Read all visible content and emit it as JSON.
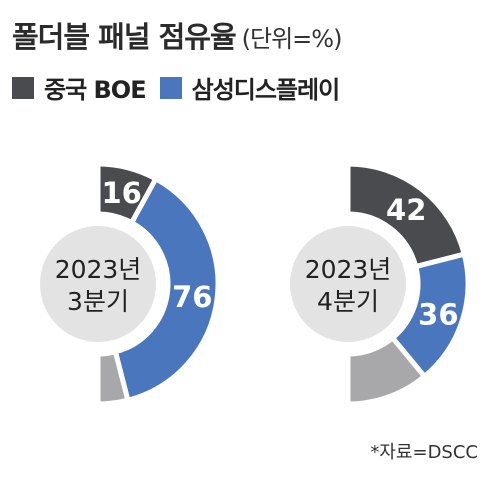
{
  "title": "폴더블 패널 점유율",
  "unit_note": "(단위=%)",
  "source": "*자료=DSCC",
  "colors": {
    "boe": "#4a4b4f",
    "samsung": "#4a76bd",
    "others": "#a8a8aa",
    "center": "#e3e3e3",
    "label_text": "#ffffff"
  },
  "chart_data": {
    "type": "pie",
    "legend": [
      {
        "name": "중국 BOE",
        "color_key": "boe"
      },
      {
        "name": "삼성디스플레이",
        "color_key": "samsung"
      }
    ],
    "legend_placement": "top-left",
    "charts": [
      {
        "period_line1": "2023년",
        "period_line2": "3분기",
        "slices": [
          {
            "series": "중국 BOE",
            "value": 16,
            "label": "16",
            "color_key": "boe"
          },
          {
            "series": "삼성디스플레이",
            "value": 76,
            "label": "76",
            "color_key": "samsung"
          },
          {
            "series": "",
            "value": 8,
            "label": "",
            "color_key": "others"
          }
        ]
      },
      {
        "period_line1": "2023년",
        "period_line2": "4분기",
        "slices": [
          {
            "series": "중국 BOE",
            "value": 42,
            "label": "42",
            "color_key": "boe"
          },
          {
            "series": "삼성디스플레이",
            "value": 36,
            "label": "36",
            "color_key": "samsung"
          },
          {
            "series": "",
            "value": 22,
            "label": "",
            "color_key": "others"
          }
        ]
      }
    ]
  }
}
